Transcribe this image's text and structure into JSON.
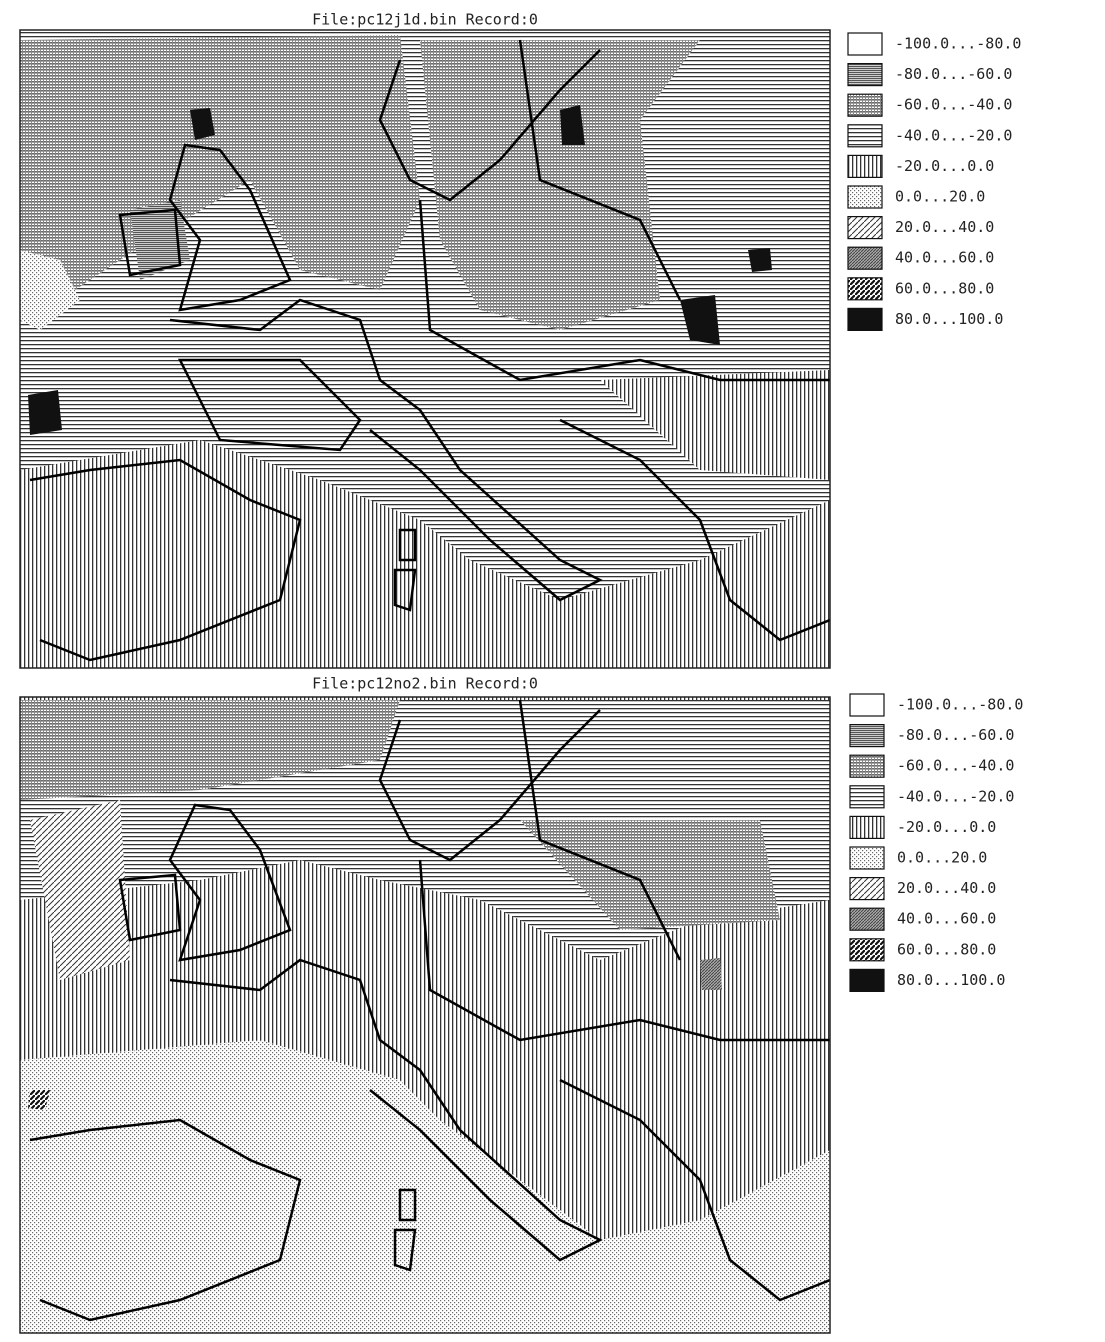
{
  "panels": [
    {
      "title": "File:pc12j1d.bin Record:0",
      "legend": [
        "-100.0...-80.0",
        "-80.0...-60.0",
        "-60.0...-40.0",
        "-40.0...-20.0",
        "-20.0...0.0",
        "0.0...20.0",
        "20.0...40.0",
        "40.0...60.0",
        "60.0...80.0",
        "80.0...100.0"
      ]
    },
    {
      "title": "File:pc12no2.bin Record:0",
      "legend": [
        "-100.0...-80.0",
        "-80.0...-60.0",
        "-60.0...-40.0",
        "-40.0...-20.0",
        "-20.0...0.0",
        "0.0...20.0",
        "20.0...40.0",
        "40.0...60.0",
        "60.0...80.0",
        "80.0...100.0"
      ]
    }
  ]
}
